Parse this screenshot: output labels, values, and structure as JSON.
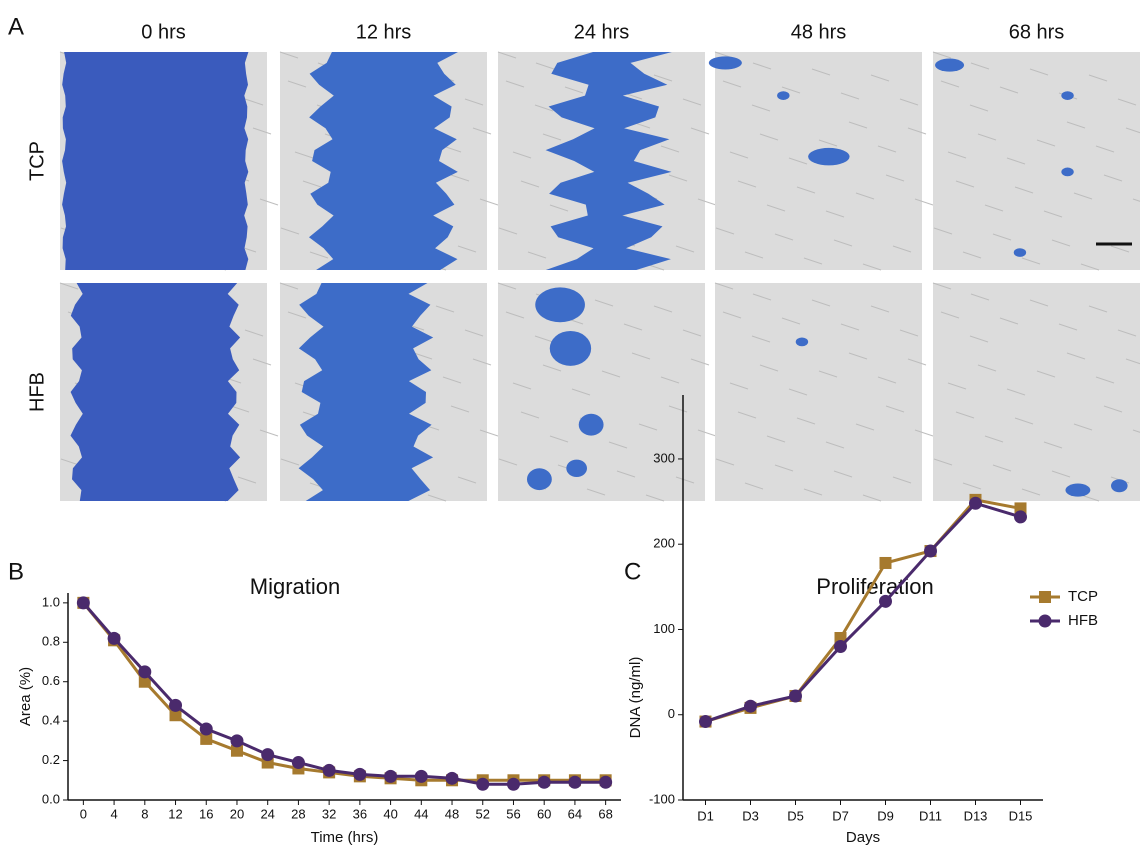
{
  "panel_a": {
    "label": "A",
    "columns": [
      "0 hrs",
      "12 hrs",
      "24 hrs",
      "48 hrs",
      "68 hrs"
    ],
    "rows": [
      "TCP",
      "HFB"
    ]
  },
  "chart_data": [
    {
      "type": "line",
      "panel_label": "B",
      "title": "Migration",
      "x_label": "Time (hrs)",
      "y_label": "Area (%)",
      "x": [
        0,
        4,
        8,
        12,
        16,
        20,
        24,
        28,
        32,
        36,
        40,
        44,
        48,
        52,
        56,
        60,
        64,
        68
      ],
      "xlim": [
        -2,
        70
      ],
      "xticks": [
        0,
        4,
        8,
        12,
        16,
        20,
        24,
        28,
        32,
        36,
        40,
        44,
        48,
        52,
        56,
        60,
        64,
        68
      ],
      "ylim": [
        0,
        1.05
      ],
      "yticks": [
        {
          "value": 0,
          "label": "0.0"
        },
        0.2,
        0.4,
        0.6,
        0.8,
        {
          "value": 1,
          "label": "1.0"
        }
      ],
      "series": [
        {
          "name": "TCP",
          "color": "#a67a2e",
          "marker": "square",
          "values": [
            1.0,
            0.81,
            0.6,
            0.43,
            0.31,
            0.25,
            0.19,
            0.16,
            0.14,
            0.12,
            0.11,
            0.1,
            0.1,
            0.1,
            0.1,
            0.1,
            0.1,
            0.1
          ]
        },
        {
          "name": "HFB",
          "color": "#4a2a6c",
          "marker": "circle",
          "values": [
            1.0,
            0.82,
            0.65,
            0.48,
            0.36,
            0.3,
            0.23,
            0.19,
            0.15,
            0.13,
            0.12,
            0.12,
            0.11,
            0.08,
            0.08,
            0.09,
            0.09,
            0.09
          ]
        }
      ]
    },
    {
      "type": "line",
      "panel_label": "C",
      "title": "Proliferation",
      "x_label": "Days",
      "y_label": "DNA (ng/ml)",
      "categories": [
        "D1",
        "D3",
        "D5",
        "D7",
        "D9",
        "D11",
        "D13",
        "D15"
      ],
      "ylim": [
        -100,
        375
      ],
      "yticks": [
        -100,
        0,
        100,
        200,
        300
      ],
      "legend": "top-right",
      "series": [
        {
          "name": "TCP",
          "color": "#a67a2e",
          "marker": "square",
          "values": [
            -8,
            8,
            22,
            90,
            178,
            192,
            252,
            242
          ]
        },
        {
          "name": "HFB",
          "color": "#4a2a6c",
          "marker": "circle",
          "values": [
            -8,
            10,
            22,
            80,
            133,
            192,
            248,
            232
          ]
        }
      ]
    }
  ]
}
